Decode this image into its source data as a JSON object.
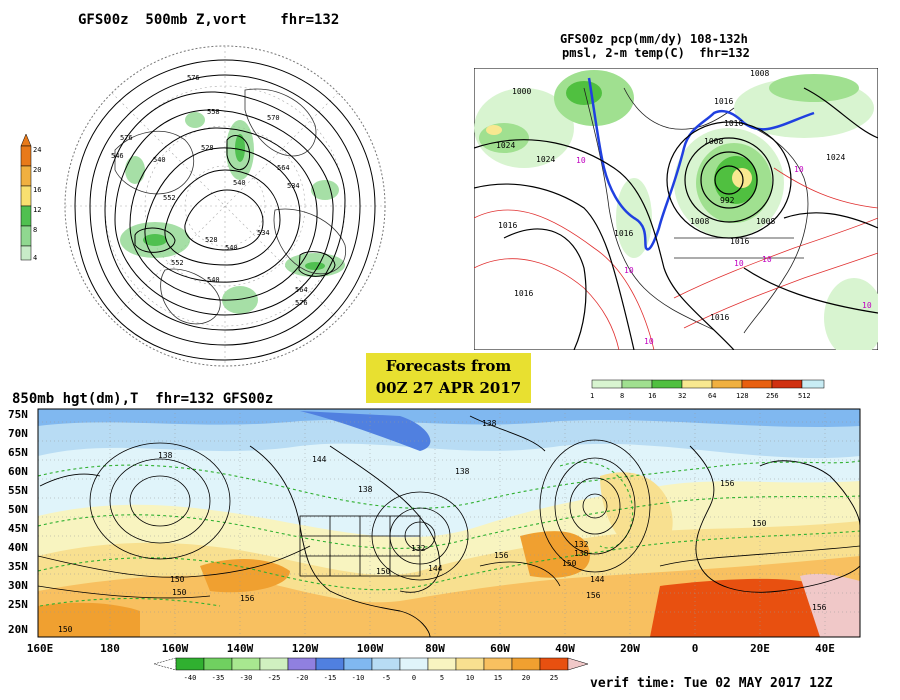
{
  "panel1": {
    "title": "GFS00z  500mb Z,vort    fhr=132",
    "colorbar_levels": [
      "24",
      "20",
      "16",
      "12",
      "8",
      "4"
    ],
    "colorbar_colors": [
      "#e87a1a",
      "#f0b040",
      "#f8e070",
      "#50c050",
      "#90d890",
      "#c8ecc8"
    ],
    "contour_labels": [
      {
        "text": "576"
      },
      {
        "text": "558"
      },
      {
        "text": "570"
      },
      {
        "text": "576"
      },
      {
        "text": "546"
      },
      {
        "text": "540"
      },
      {
        "text": "528"
      },
      {
        "text": "564"
      },
      {
        "text": "540"
      },
      {
        "text": "534"
      },
      {
        "text": "552"
      },
      {
        "text": "528"
      },
      {
        "text": "534"
      },
      {
        "text": "540"
      },
      {
        "text": "552"
      },
      {
        "text": "540"
      },
      {
        "text": "576"
      },
      {
        "text": "564"
      }
    ]
  },
  "panel2": {
    "title_line1": "GFS00z pcp(mm/dy) 108-132h",
    "title_line2": "pmsl, 2-m temp(C)  fhr=132",
    "colorbar_levels": [
      "1",
      "8",
      "16",
      "32",
      "64",
      "128",
      "256",
      "512"
    ],
    "colorbar_colors": [
      "#d8f4d0",
      "#a0e090",
      "#50c040",
      "#f8e890",
      "#f0b040",
      "#e86010",
      "#d03010",
      "#c8ecf4"
    ],
    "isobar_labels": [
      "1008",
      "1000",
      "1016",
      "1024",
      "1016",
      "1008",
      "1024",
      "1024",
      "1016",
      "992",
      "1008",
      "1016",
      "1016",
      "1008",
      "1016",
      "1016"
    ],
    "temp_labels": [
      "10",
      "10",
      "10",
      "10",
      "10",
      "10",
      "10"
    ]
  },
  "forecast_box": {
    "line1": "Forecasts from",
    "line2": "00Z 27 APR 2017"
  },
  "panel3": {
    "title": "850mb hgt(dm),T  fhr=132 GFS00z",
    "lat_labels": [
      "75N",
      "70N",
      "65N",
      "60N",
      "55N",
      "50N",
      "45N",
      "40N",
      "35N",
      "30N",
      "25N",
      "20N"
    ],
    "lon_labels": [
      "160E",
      "180",
      "160W",
      "140W",
      "120W",
      "100W",
      "80W",
      "60W",
      "40W",
      "20W",
      "0",
      "20E",
      "40E"
    ],
    "height_labels": [
      "138",
      "138",
      "144",
      "138",
      "138",
      "132",
      "150",
      "144",
      "150",
      "156",
      "156",
      "150",
      "156",
      "132",
      "138",
      "144",
      "150",
      "156",
      "150",
      "156",
      "150"
    ],
    "colorbar_levels": [
      "-40",
      "-35",
      "-30",
      "-25",
      "-20",
      "-15",
      "-10",
      "-5",
      "0",
      "5",
      "10",
      "15",
      "20",
      "25"
    ],
    "colorbar_colors": [
      "#30b030",
      "#70d060",
      "#a8e890",
      "#d0f0c0",
      "#9080e0",
      "#5080e0",
      "#80b8f0",
      "#b8dcf4",
      "#e0f4fa",
      "#f8f4c0",
      "#f8e090",
      "#f8c060",
      "#f0a030",
      "#e85010",
      "#f0c8c8"
    ]
  },
  "verif": {
    "text": "verif time: Tue 02 MAY 2017 12Z"
  }
}
